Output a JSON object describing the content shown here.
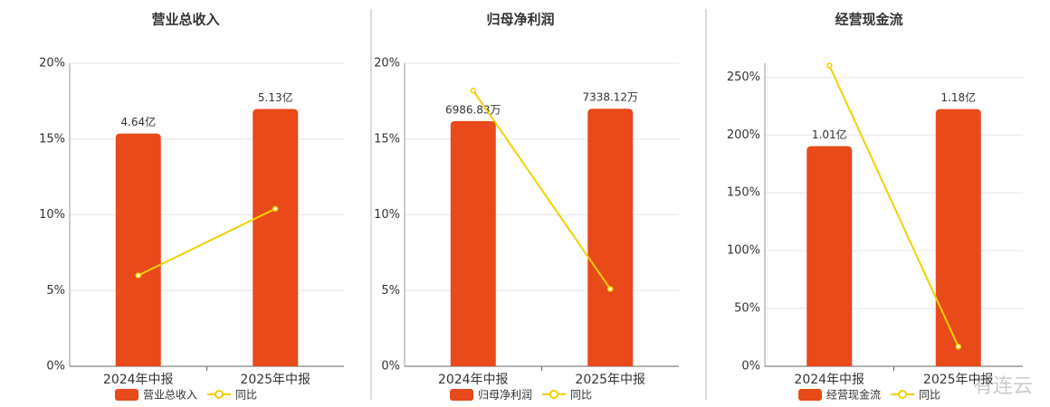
{
  "chart_data": [
    {
      "type": "bar",
      "title": "营业总收入",
      "categories": [
        "2024年中报",
        "2025年中报"
      ],
      "series": [
        {
          "name": "营业总收入",
          "color": "#e84a19",
          "values": [
            4.64,
            5.13
          ],
          "value_labels": [
            "4.64亿",
            "5.13亿"
          ],
          "axis": "y2"
        },
        {
          "name": "同比",
          "type": "line",
          "color": "#f2d000",
          "values": [
            6.0,
            10.4
          ]
        }
      ],
      "ylim": [
        0,
        20
      ],
      "yticks": [
        {
          "value": 0,
          "label": "0%"
        },
        {
          "value": 5,
          "label": "5%"
        },
        {
          "value": 10,
          "label": "10%"
        },
        {
          "value": 15,
          "label": "15%"
        },
        {
          "value": 20,
          "label": "20%"
        }
      ],
      "y2lim": [
        0,
        6.04
      ],
      "grid": true
    },
    {
      "type": "bar",
      "title": "归母净利润",
      "categories": [
        "2024年中报",
        "2025年中报"
      ],
      "series": [
        {
          "name": "归母净利润",
          "color": "#e84a19",
          "values": [
            6986.83,
            7338.12
          ],
          "value_labels": [
            "6986.83万",
            "7338.12万"
          ],
          "axis": "y2"
        },
        {
          "name": "同比",
          "type": "line",
          "color": "#f2d000",
          "values": [
            18.2,
            5.1
          ]
        }
      ],
      "ylim": [
        0,
        20
      ],
      "yticks": [
        {
          "value": 0,
          "label": "0%"
        },
        {
          "value": 5,
          "label": "5%"
        },
        {
          "value": 10,
          "label": "10%"
        },
        {
          "value": 15,
          "label": "15%"
        },
        {
          "value": 20,
          "label": "20%"
        }
      ],
      "y2lim": [
        0,
        8633
      ],
      "grid": true
    },
    {
      "type": "bar",
      "title": "经营现金流",
      "categories": [
        "2024年中报",
        "2025年中报"
      ],
      "series": [
        {
          "name": "经营现金流",
          "color": "#e84a19",
          "values": [
            1.01,
            1.18
          ],
          "value_labels": [
            "1.01亿",
            "1.18亿"
          ],
          "axis": "y2"
        },
        {
          "name": "同比",
          "type": "line",
          "color": "#f2d000",
          "values": [
            260,
            17
          ]
        }
      ],
      "ylim": [
        0,
        262
      ],
      "yticks": [
        {
          "value": 0,
          "label": "0%"
        },
        {
          "value": 50,
          "label": "50%"
        },
        {
          "value": 100,
          "label": "100%"
        },
        {
          "value": 150,
          "label": "150%"
        },
        {
          "value": 200,
          "label": "200%"
        },
        {
          "value": 250,
          "label": "250%"
        }
      ],
      "y2lim": [
        0,
        1.39
      ],
      "grid": true
    }
  ],
  "watermark": "有连云"
}
